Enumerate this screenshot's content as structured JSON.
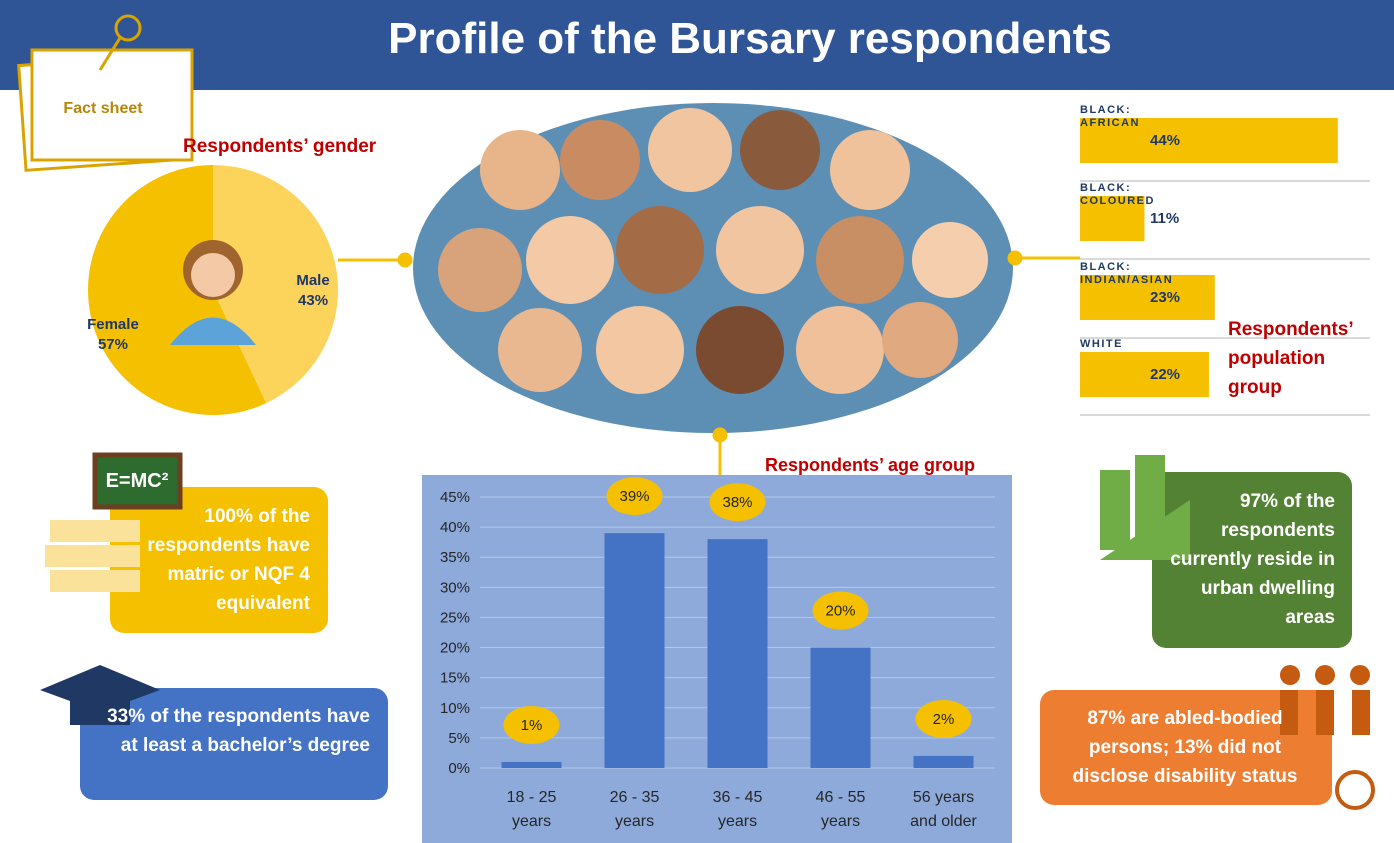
{
  "title": "Profile of the Bursary respondents",
  "badge": "Fact sheet",
  "chart_data": [
    {
      "type": "pie",
      "title": "Respondents’ gender",
      "categories": [
        "Female",
        "Male"
      ],
      "values": [
        57,
        43
      ],
      "value_labels": [
        "57%",
        "43%"
      ],
      "colors": [
        "#f5c000",
        "#fcd35b"
      ]
    },
    {
      "type": "hbar",
      "title": "Respondents’ population group",
      "categories": [
        "BLACK:\nAFRICAN",
        "BLACK:\nCOLOURED",
        "BLACK:\nINDIAN/ASIAN",
        "WHITE"
      ],
      "values": [
        44,
        11,
        23,
        22
      ],
      "value_labels": [
        "44%",
        "11%",
        "23%",
        "22%"
      ],
      "color": "#f5c000"
    },
    {
      "type": "bar",
      "title": "Respondents’ age group",
      "categories": [
        "18 - 25\nyears",
        "26 - 35\nyears",
        "36 - 45\nyears",
        "46 - 55\nyears",
        "56 years\nand older"
      ],
      "values": [
        1,
        39,
        38,
        20,
        2
      ],
      "value_labels": [
        "1%",
        "39%",
        "38%",
        "20%",
        "2%"
      ],
      "ylim": [
        0,
        45
      ],
      "yticks": [
        {
          "value": 0,
          "label": "0%"
        },
        {
          "value": 5,
          "label": "5%"
        },
        {
          "value": 10,
          "label": "10%"
        },
        {
          "value": 15,
          "label": "15%"
        },
        {
          "value": 20,
          "label": "20%"
        },
        {
          "value": 25,
          "label": "25%"
        },
        {
          "value": 30,
          "label": "30%"
        },
        {
          "value": 35,
          "label": "35%"
        },
        {
          "value": 40,
          "label": "40%"
        },
        {
          "value": 45,
          "label": "45%"
        }
      ],
      "grid": true,
      "color": "#4472c4"
    }
  ],
  "facts": [
    "100% of the respondents have matric or NQF 4 equivalent",
    "33% of the respondents have at least a bachelor’s degree",
    "97% of the respondents currently reside in urban dwelling areas",
    "87% are abled-bodied persons; 13% did not disclose disability status"
  ]
}
